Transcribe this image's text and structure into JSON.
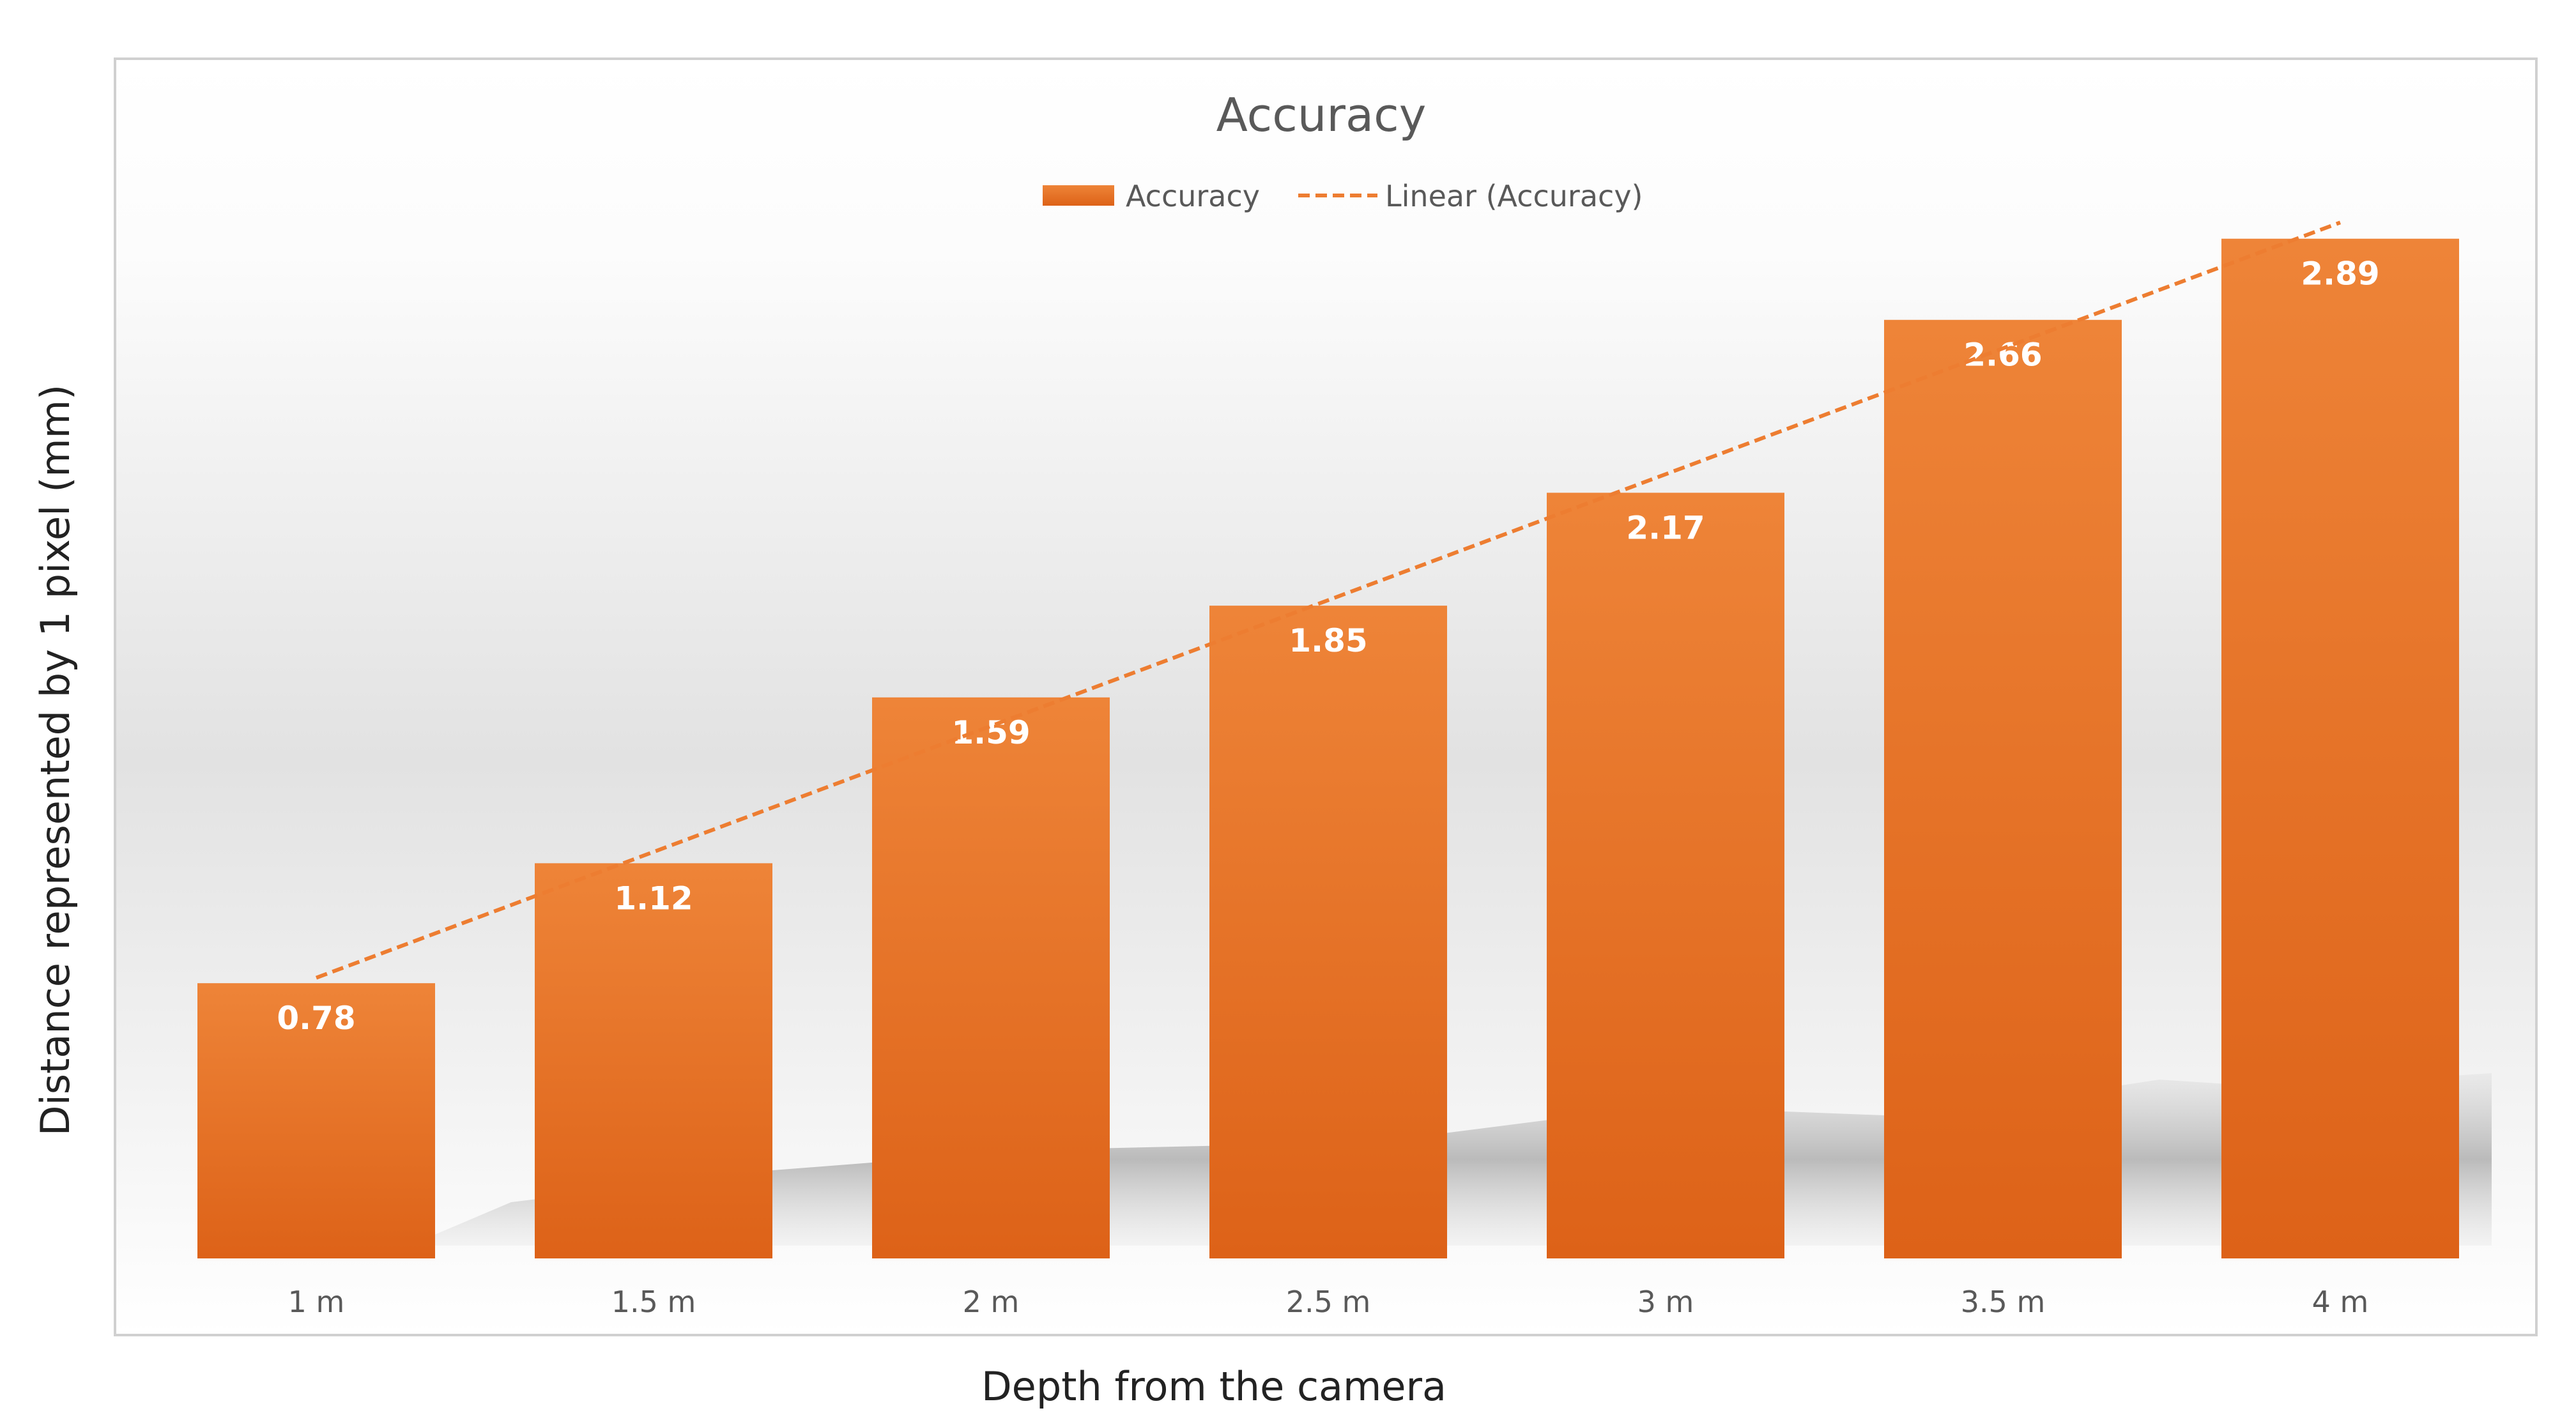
{
  "chart_data": {
    "type": "bar",
    "title": "Accuracy",
    "xlabel": "Depth from the camera",
    "ylabel": "Distance represented by 1 pixel (mm)",
    "categories": [
      "1 m",
      "1.5 m",
      "2 m",
      "2.5 m",
      "3 m",
      "3.5 m",
      "4 m"
    ],
    "series": [
      {
        "name": "Accuracy",
        "values": [
          0.78,
          1.12,
          1.59,
          1.85,
          2.17,
          2.66,
          2.89
        ]
      }
    ],
    "data_labels": [
      "0.78",
      "1.12",
      "1.59",
      "1.85",
      "2.17",
      "2.66",
      "2.89"
    ],
    "trendline": {
      "name": "Linear (Accuracy)",
      "type": "linear",
      "style": "dashed",
      "color": "#ED7D31"
    },
    "ylim": [
      0,
      3.4
    ],
    "grid": false,
    "legend_position": "top",
    "colors": {
      "bar_top": "#EE8438",
      "bar_bottom": "#DD6218",
      "trend": "#ED7D31"
    }
  }
}
